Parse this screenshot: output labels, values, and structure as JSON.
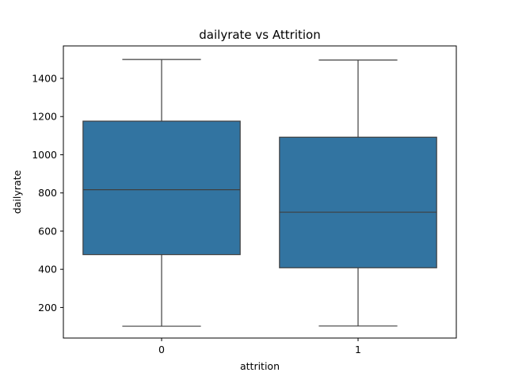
{
  "chart_data": {
    "type": "box",
    "title": "dailyrate vs Attrition",
    "xlabel": "attrition",
    "ylabel": "dailyrate",
    "categories": [
      "0",
      "1"
    ],
    "ylim": [
      40,
      1570
    ],
    "yticks": [
      200,
      400,
      600,
      800,
      1000,
      1200,
      1400
    ],
    "grid": false,
    "box_color": "#3274a1",
    "line_color": "#3f3f3f",
    "series": [
      {
        "category": "0",
        "whisker_low": 102,
        "q1": 477,
        "median": 817,
        "q3": 1176,
        "whisker_high": 1499
      },
      {
        "category": "1",
        "whisker_low": 103,
        "q1": 408,
        "median": 699,
        "q3": 1092,
        "whisker_high": 1496
      }
    ]
  }
}
